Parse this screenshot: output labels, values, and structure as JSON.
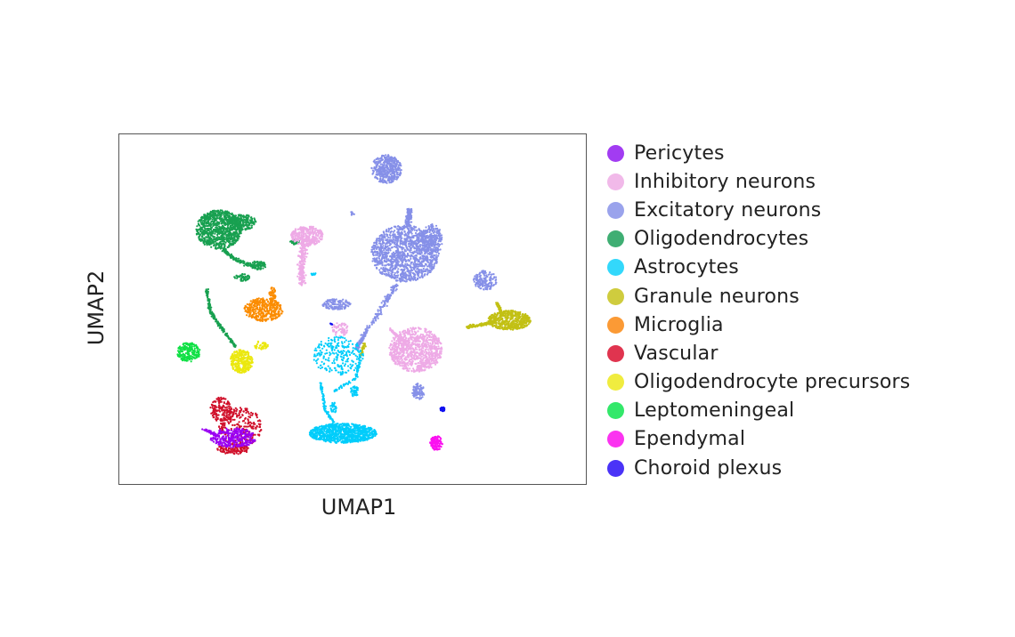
{
  "chart_data": {
    "type": "scatter",
    "title": "",
    "xlabel": "UMAP1",
    "ylabel": "UMAP2",
    "grid": false,
    "ticks": false,
    "legend_placement": "right",
    "legend": [
      {
        "name": "Pericytes",
        "color": "#a23cf2"
      },
      {
        "name": "Inhibitory neurons",
        "color": "#f1b9e9"
      },
      {
        "name": "Excitatory neurons",
        "color": "#9aa3ec"
      },
      {
        "name": "Oligodendrocytes",
        "color": "#3fae73"
      },
      {
        "name": "Astrocytes",
        "color": "#33d8fb"
      },
      {
        "name": "Granule neurons",
        "color": "#cfcc3e"
      },
      {
        "name": "Microglia",
        "color": "#fb9a35"
      },
      {
        "name": "Vascular",
        "color": "#e0344f"
      },
      {
        "name": "Oligodendrocyte precursors",
        "color": "#f0ec3f"
      },
      {
        "name": "Leptomeningeal",
        "color": "#33e86a"
      },
      {
        "name": "Ependymal",
        "color": "#fb33f0"
      },
      {
        "name": "Choroid plexus",
        "color": "#4a33f7"
      }
    ],
    "point_colors": {
      "Pericytes": "#9a00f2",
      "Inhibitory neurons": "#eeaae6",
      "Excitatory neurons": "#8690e8",
      "Oligodendrocytes": "#18a050",
      "Astrocytes": "#00cdfb",
      "Granule neurons": "#c2c014",
      "Microglia": "#fb8c00",
      "Vascular": "#d0102a",
      "Oligodendrocyte precursors": "#ebe810",
      "Leptomeningeal": "#10e045",
      "Ependymal": "#fb10f0",
      "Choroid plexus": "#1010f0"
    }
  }
}
